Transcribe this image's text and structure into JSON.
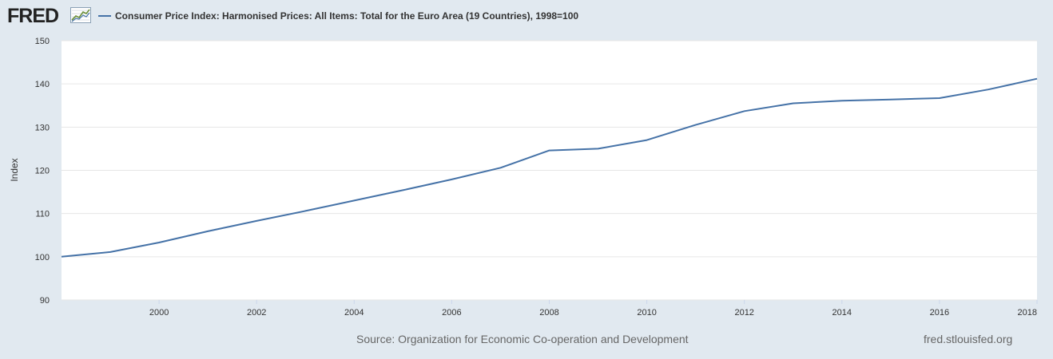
{
  "header": {
    "logo_text": "FRED",
    "legend_label": "Consumer Price Index: Harmonised Prices: All Items: Total for the Euro Area (19 Countries), 1998=100"
  },
  "footer": {
    "source": "Source: Organization for Economic Co-operation and Development",
    "site": "fred.stlouisfed.org"
  },
  "colors": {
    "series": "#4572a7",
    "background": "#e1e9f0",
    "plot": "#ffffff",
    "grid": "#e6e6e6"
  },
  "icons": {
    "logo_graph": "fred-logo-graph-icon"
  },
  "chart_data": {
    "type": "line",
    "title": "",
    "xlabel": "",
    "ylabel": "Index",
    "xlim": [
      1998,
      2018
    ],
    "ylim": [
      90,
      150
    ],
    "x_ticks": [
      2000,
      2002,
      2004,
      2006,
      2008,
      2010,
      2012,
      2014,
      2016,
      2018
    ],
    "y_ticks": [
      90,
      100,
      110,
      120,
      130,
      140,
      150
    ],
    "grid": true,
    "legend": "top-left",
    "series": [
      {
        "name": "Consumer Price Index: Harmonised Prices: All Items: Total for the Euro Area (19 Countries), 1998=100",
        "x": [
          1998,
          1999,
          2000,
          2001,
          2002,
          2003,
          2004,
          2005,
          2006,
          2007,
          2008,
          2009,
          2010,
          2011,
          2012,
          2013,
          2014,
          2015,
          2016,
          2017,
          2018
        ],
        "y": [
          100.0,
          101.1,
          103.3,
          105.9,
          108.3,
          110.6,
          113.0,
          115.4,
          117.9,
          120.6,
          124.6,
          125.0,
          127.0,
          130.5,
          133.7,
          135.5,
          136.1,
          136.4,
          136.7,
          138.7,
          141.2
        ]
      }
    ]
  }
}
